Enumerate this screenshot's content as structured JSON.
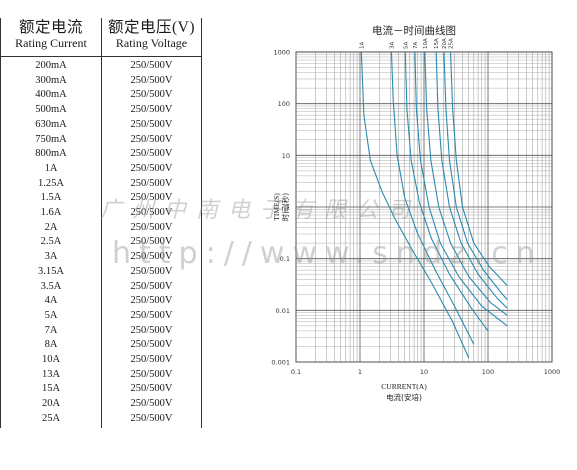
{
  "table": {
    "current_header_zh": "额定电流",
    "current_header_en": "Rating Current",
    "voltage_header_zh": "额定电压(V)",
    "voltage_header_en": "Rating Voltage",
    "rows": [
      {
        "current": "200mA",
        "voltage": "250/500V"
      },
      {
        "current": "300mA",
        "voltage": "250/500V"
      },
      {
        "current": "400mA",
        "voltage": "250/500V"
      },
      {
        "current": "500mA",
        "voltage": "250/500V"
      },
      {
        "current": "630mA",
        "voltage": "250/500V"
      },
      {
        "current": "750mA",
        "voltage": "250/500V"
      },
      {
        "current": "800mA",
        "voltage": "250/500V"
      },
      {
        "current": "1A",
        "voltage": "250/500V"
      },
      {
        "current": "1.25A",
        "voltage": "250/500V"
      },
      {
        "current": "1.5A",
        "voltage": "250/500V"
      },
      {
        "current": "1.6A",
        "voltage": "250/500V"
      },
      {
        "current": "2A",
        "voltage": "250/500V"
      },
      {
        "current": "2.5A",
        "voltage": "250/500V"
      },
      {
        "current": "3A",
        "voltage": "250/500V"
      },
      {
        "current": "3.15A",
        "voltage": "250/500V"
      },
      {
        "current": "3.5A",
        "voltage": "250/500V"
      },
      {
        "current": "4A",
        "voltage": "250/500V"
      },
      {
        "current": "5A",
        "voltage": "250/500V"
      },
      {
        "current": "7A",
        "voltage": "250/500V"
      },
      {
        "current": "8A",
        "voltage": "250/500V"
      },
      {
        "current": "10A",
        "voltage": "250/500V"
      },
      {
        "current": "13A",
        "voltage": "250/500V"
      },
      {
        "current": "15A",
        "voltage": "250/500V"
      },
      {
        "current": "20A",
        "voltage": "250/500V"
      },
      {
        "current": "25A",
        "voltage": "250/500V"
      }
    ]
  },
  "chart_data": {
    "type": "line",
    "title": "电流－时间曲线图",
    "xlabel": "CURRENT(A)",
    "xlabel_zh": "电流(安培)",
    "ylabel": "TIME(S)",
    "ylabel_zh": "时间(秒)",
    "x_scale": "log",
    "y_scale": "log",
    "xlim": [
      0.1,
      1000
    ],
    "ylim": [
      0.001,
      1000
    ],
    "x_tick_labels": [
      "0.1",
      "1",
      "10",
      "100",
      "1000"
    ],
    "y_tick_labels": [
      "1000",
      "100",
      "10",
      "1",
      "0.1",
      "0.01",
      "0.001"
    ],
    "grid": true,
    "line_color": "#2a8ab0",
    "series": [
      {
        "name": "1A",
        "points": [
          [
            1.05,
            1000
          ],
          [
            1.15,
            60
          ],
          [
            1.45,
            8
          ],
          [
            2.2,
            2
          ],
          [
            3.5,
            0.6
          ],
          [
            6.5,
            0.15
          ],
          [
            13,
            0.035
          ],
          [
            28,
            0.006
          ],
          [
            50,
            0.0012
          ]
        ]
      },
      {
        "name": "3A",
        "points": [
          [
            3.1,
            1000
          ],
          [
            3.3,
            120
          ],
          [
            3.8,
            10
          ],
          [
            5,
            1.5
          ],
          [
            8,
            0.3
          ],
          [
            15,
            0.06
          ],
          [
            30,
            0.012
          ],
          [
            60,
            0.0022
          ]
        ]
      },
      {
        "name": "5A",
        "points": [
          [
            5.1,
            1000
          ],
          [
            5.4,
            80
          ],
          [
            6.3,
            8
          ],
          [
            8.5,
            1.2
          ],
          [
            13,
            0.25
          ],
          [
            25,
            0.05
          ],
          [
            55,
            0.011
          ],
          [
            100,
            0.004
          ]
        ]
      },
      {
        "name": "7A",
        "points": [
          [
            7.2,
            1000
          ],
          [
            7.6,
            80
          ],
          [
            8.8,
            8
          ],
          [
            12,
            1
          ],
          [
            18,
            0.2
          ],
          [
            35,
            0.045
          ],
          [
            80,
            0.012
          ],
          [
            200,
            0.005
          ]
        ]
      },
      {
        "name": "10A",
        "points": [
          [
            10.3,
            1000
          ],
          [
            11,
            80
          ],
          [
            12.8,
            8
          ],
          [
            17,
            1
          ],
          [
            26,
            0.2
          ],
          [
            50,
            0.045
          ],
          [
            110,
            0.014
          ],
          [
            200,
            0.008
          ]
        ]
      },
      {
        "name": "15A",
        "points": [
          [
            15.5,
            1000
          ],
          [
            16.5,
            80
          ],
          [
            19,
            8
          ],
          [
            25,
            1
          ],
          [
            38,
            0.2
          ],
          [
            70,
            0.05
          ],
          [
            140,
            0.017
          ],
          [
            200,
            0.011
          ]
        ]
      },
      {
        "name": "20A",
        "points": [
          [
            20.5,
            1000
          ],
          [
            22,
            80
          ],
          [
            25,
            8
          ],
          [
            32,
            1
          ],
          [
            48,
            0.2
          ],
          [
            85,
            0.06
          ],
          [
            160,
            0.022
          ],
          [
            200,
            0.016
          ]
        ]
      },
      {
        "name": "25A",
        "points": [
          [
            26,
            1000
          ],
          [
            28,
            80
          ],
          [
            32,
            8
          ],
          [
            40,
            1
          ],
          [
            60,
            0.2
          ],
          [
            105,
            0.07
          ],
          [
            200,
            0.03
          ]
        ]
      }
    ]
  },
  "watermark": {
    "company": "广州中南电子有限公司",
    "url": "http://www.sndz.cn"
  }
}
